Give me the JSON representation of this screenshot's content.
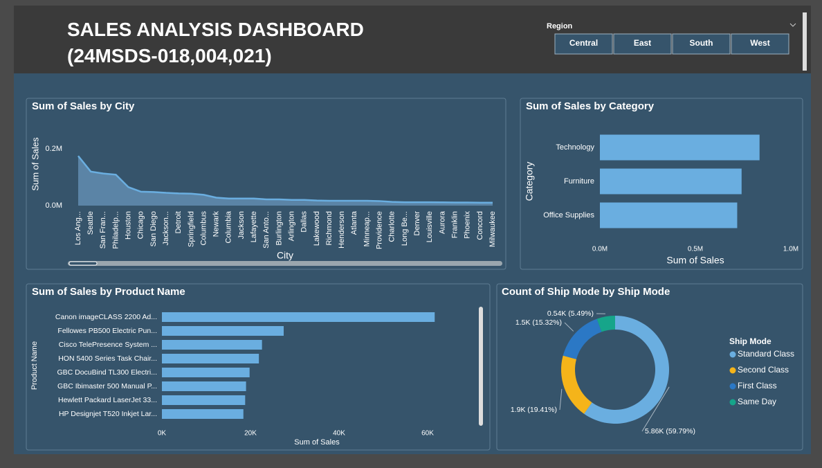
{
  "header": {
    "title": "SALES ANALYSIS DASHBOARD (24MSDS-018,004,021)"
  },
  "slicer": {
    "title": "Region",
    "options": [
      "Central",
      "East",
      "South",
      "West"
    ]
  },
  "chart_data": [
    {
      "type": "area",
      "title": "Sum of Sales by City",
      "x_label": "City",
      "y_label": "Sum of Sales",
      "color": "#6aaee0",
      "categories": [
        "Los Ang...",
        "Seattle",
        "San Fran...",
        "Philadelp...",
        "Houston",
        "Chicago",
        "San Diego",
        "Jackson...",
        "Detroit",
        "Springfield",
        "Columbus",
        "Newark",
        "Columbia",
        "Jackson",
        "Lafayette",
        "San Anto...",
        "Burlington",
        "Arlington",
        "Dallas",
        "Lakewood",
        "Richmond",
        "Henderson",
        "Atlanta",
        "Minneap...",
        "Providence",
        "Charlotte",
        "Long Be...",
        "Denver",
        "Louisville",
        "Aurora",
        "Franklin",
        "Phoenix",
        "Concord",
        "Milwaukee"
      ],
      "values": [
        175000,
        120000,
        113000,
        109000,
        65000,
        49000,
        48000,
        45000,
        43000,
        42000,
        38000,
        28000,
        25000,
        25000,
        25000,
        22000,
        22000,
        20000,
        20000,
        18000,
        17000,
        17000,
        17000,
        17000,
        16000,
        13000,
        12000,
        12000,
        12000,
        11500,
        11000,
        11000,
        10500,
        10500
      ],
      "ylim": [
        0,
        250000
      ],
      "yticks": [
        {
          "value": 0,
          "label": "0.0M"
        },
        {
          "value": 200000,
          "label": "0.2M"
        }
      ]
    },
    {
      "type": "hbar",
      "title": "Sum of Sales by Category",
      "x_label": "Sum of Sales",
      "y_label": "Category",
      "color": "#6aaee0",
      "categories": [
        "Technology",
        "Furniture",
        "Office Supplies"
      ],
      "values": [
        836000,
        742000,
        719000
      ],
      "xlim": [
        0,
        1000000
      ],
      "xticks": [
        {
          "value": 0,
          "label": "0.0M"
        },
        {
          "value": 500000,
          "label": "0.5M"
        },
        {
          "value": 1000000,
          "label": "1.0M"
        }
      ]
    },
    {
      "type": "hbar",
      "title": "Sum of Sales by Product Name",
      "x_label": "Sum of Sales",
      "y_label": "Product Name",
      "color": "#6aaee0",
      "categories": [
        "Canon imageCLASS 2200 Ad...",
        "Fellowes PB500 Electric Pun...",
        "Cisco TelePresence System ...",
        "HON 5400 Series Task Chair...",
        "GBC DocuBind TL300 Electri...",
        "GBC Ibimaster 500 Manual P...",
        "Hewlett Packard LaserJet 33...",
        "HP Designjet T520 Inkjet Lar..."
      ],
      "values": [
        61600,
        27500,
        22600,
        21900,
        19800,
        19000,
        18800,
        18400
      ],
      "xlim": [
        0,
        71000
      ],
      "xticks": [
        {
          "value": 0,
          "label": "0K"
        },
        {
          "value": 20000,
          "label": "20K"
        },
        {
          "value": 40000,
          "label": "40K"
        },
        {
          "value": 60000,
          "label": "60K"
        }
      ]
    },
    {
      "type": "donut",
      "title": "Count of Ship Mode by Ship Mode",
      "legend_title": "Ship Mode",
      "categories": [
        "Standard Class",
        "Second Class",
        "First Class",
        "Same Day"
      ],
      "values": [
        5859,
        1902,
        1501,
        538
      ],
      "value_labels": [
        "5.86K (59.79%)",
        "1.9K (19.41%)",
        "1.5K (15.32%)",
        "0.54K (5.49%)"
      ],
      "colors": [
        "#6aaee0",
        "#f5b41a",
        "#2b78c5",
        "#16a58a"
      ]
    }
  ]
}
